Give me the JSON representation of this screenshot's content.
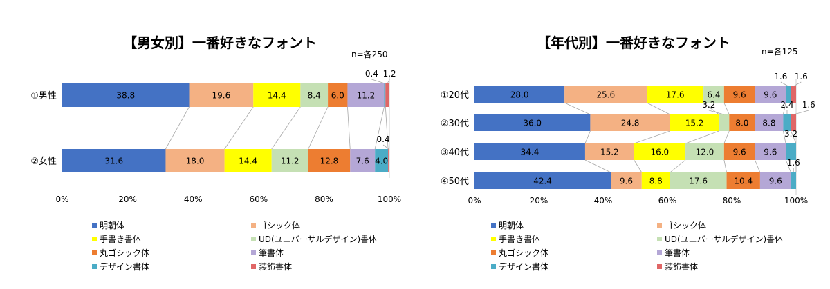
{
  "chart_data": [
    {
      "type": "bar",
      "orientation": "horizontal-stacked-100",
      "title": "【男女別】一番好きなフォント",
      "note": "n=各250",
      "categories": [
        "①男性",
        "②女性"
      ],
      "series": [
        {
          "name": "明朝体",
          "values": [
            38.8,
            31.6
          ]
        },
        {
          "name": "ゴシック体",
          "values": [
            19.6,
            18.0
          ]
        },
        {
          "name": "手書き書体",
          "values": [
            14.4,
            14.4
          ]
        },
        {
          "name": "UD(ユニバーサルデザイン)書体",
          "values": [
            8.4,
            11.2
          ]
        },
        {
          "name": "丸ゴシック体",
          "values": [
            6.0,
            12.8
          ]
        },
        {
          "name": "筆書体",
          "values": [
            11.2,
            7.6
          ]
        },
        {
          "name": "デザイン書体",
          "values": [
            0.4,
            4.0
          ]
        },
        {
          "name": "装飾書体",
          "values": [
            1.2,
            0.4
          ]
        }
      ],
      "xticks": [
        "0%",
        "20%",
        "40%",
        "60%",
        "80%",
        "100%"
      ],
      "xlim": [
        0,
        100
      ]
    },
    {
      "type": "bar",
      "orientation": "horizontal-stacked-100",
      "title": "【年代別】一番好きなフォント",
      "note": "n=各125",
      "categories": [
        "①20代",
        "②30代",
        "③40代",
        "④50代"
      ],
      "series": [
        {
          "name": "明朝体",
          "values": [
            28.0,
            36.0,
            34.4,
            42.4
          ]
        },
        {
          "name": "ゴシック体",
          "values": [
            25.6,
            24.8,
            15.2,
            9.6
          ]
        },
        {
          "name": "手書き書体",
          "values": [
            17.6,
            15.2,
            16.0,
            8.8
          ]
        },
        {
          "name": "UD(ユニバーサルデザイン)書体",
          "values": [
            6.4,
            3.2,
            12.0,
            17.6
          ]
        },
        {
          "name": "丸ゴシック体",
          "values": [
            9.6,
            8.0,
            9.6,
            10.4
          ]
        },
        {
          "name": "筆書体",
          "values": [
            9.6,
            8.8,
            9.6,
            9.6
          ]
        },
        {
          "name": "デザイン書体",
          "values": [
            1.6,
            2.4,
            3.2,
            1.6
          ]
        },
        {
          "name": "装飾書体",
          "values": [
            1.6,
            1.6,
            0.0,
            0.0
          ]
        }
      ],
      "xticks": [
        "0%",
        "20%",
        "40%",
        "60%",
        "80%",
        "100%"
      ],
      "xlim": [
        0,
        100
      ]
    }
  ],
  "colors": [
    "#4472c4",
    "#f4b183",
    "#ffff00",
    "#c5e0b4",
    "#ed7d31",
    "#b4a7d6",
    "#4bacc6",
    "#e06666"
  ],
  "legend_labels": [
    "明朝体",
    "ゴシック体",
    "手書き書体",
    "UD(ユニバーサルデザイン)書体",
    "丸ゴシック体",
    "筆書体",
    "デザイン書体",
    "装飾書体"
  ]
}
